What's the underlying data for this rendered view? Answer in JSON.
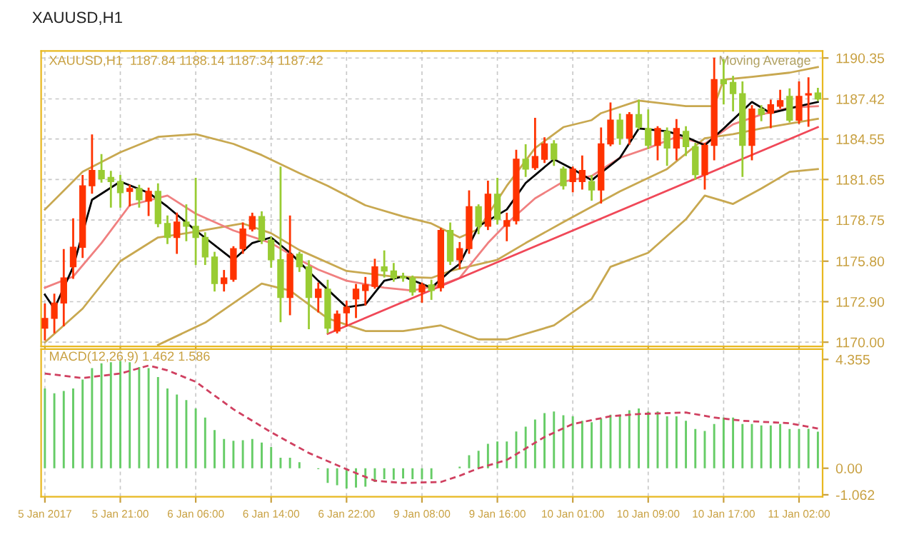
{
  "chart_data": [
    {
      "type": "candlestick",
      "title": "XAUUSD,H1",
      "subtitle": "XAUUSD,H1  1187.84 1188.14 1187.34 1187.42",
      "annotations": [
        "Moving Average"
      ],
      "categories": [
        null,
        null,
        null,
        null,
        null,
        null,
        null,
        null,
        null,
        null,
        null,
        null,
        null,
        null,
        null,
        null,
        null,
        null,
        null,
        null,
        null,
        null,
        null,
        null,
        null,
        null,
        null,
        null,
        null,
        null,
        null,
        null,
        null,
        null,
        null,
        null,
        null,
        null,
        null,
        null,
        null,
        null,
        null,
        null,
        null,
        null,
        null,
        null,
        null,
        null,
        null,
        null,
        null,
        null,
        null,
        null,
        null,
        null,
        null,
        null,
        null,
        null,
        null,
        null,
        null,
        null,
        null,
        null,
        null,
        null,
        null,
        null,
        null,
        null,
        null,
        null,
        null,
        null,
        null,
        null,
        null,
        null,
        null
      ],
      "ohlc": [
        [
          1171.0,
          1172.7,
          1170.2,
          1171.7
        ],
        [
          1171.7,
          1173.4,
          1170.7,
          1172.8
        ],
        [
          1172.8,
          1176.6,
          1171.2,
          1174.6
        ],
        [
          1175.4,
          1178.8,
          1174.6,
          1176.8
        ],
        [
          1176.8,
          1181.9,
          1176.1,
          1181.2
        ],
        [
          1181.2,
          1184.8,
          1180.7,
          1182.3
        ],
        [
          1182.3,
          1183.4,
          1181.5,
          1181.7
        ],
        [
          1181.8,
          1182.2,
          1179.7,
          1181.5
        ],
        [
          1181.5,
          1181.9,
          1179.7,
          1180.7
        ],
        [
          1180.8,
          1181.2,
          1179.8,
          1181.0
        ],
        [
          1181.0,
          1181.2,
          1179.7,
          1180.2
        ],
        [
          1180.1,
          1181.0,
          1179.1,
          1180.8
        ],
        [
          1180.8,
          1181.3,
          1178.3,
          1178.5
        ],
        [
          1178.5,
          1179.0,
          1177.1,
          1177.5
        ],
        [
          1177.5,
          1179.2,
          1176.4,
          1178.6
        ],
        [
          1178.6,
          1179.8,
          1177.3,
          1178.3
        ],
        [
          1178.3,
          1181.7,
          1175.6,
          1177.5
        ],
        [
          1177.5,
          1177.8,
          1175.6,
          1176.1
        ],
        [
          1176.1,
          1176.4,
          1173.7,
          1174.2
        ],
        [
          1174.2,
          1175.1,
          1173.7,
          1174.6
        ],
        [
          1174.5,
          1176.8,
          1174.4,
          1176.7
        ],
        [
          1176.7,
          1178.5,
          1176.4,
          1178.1
        ],
        [
          1178.1,
          1179.2,
          1178.0,
          1179.0
        ],
        [
          1179.0,
          1179.3,
          1177.1,
          1177.3
        ],
        [
          1177.3,
          1177.5,
          1175.4,
          1175.9
        ],
        [
          1175.9,
          1182.5,
          1171.5,
          1173.2
        ],
        [
          1173.2,
          1179.0,
          1172.0,
          1176.3
        ],
        [
          1176.3,
          1176.4,
          1175.1,
          1175.4
        ],
        [
          1175.4,
          1175.8,
          1171.0,
          1173.2
        ],
        [
          1173.2,
          1174.2,
          1172.2,
          1173.8
        ],
        [
          1173.8,
          1174.4,
          1170.7,
          1171.0
        ],
        [
          1170.8,
          1172.2,
          1170.7,
          1172.0
        ],
        [
          1172.1,
          1172.9,
          1171.2,
          1172.5
        ],
        [
          1173.1,
          1174.1,
          1171.8,
          1173.8
        ],
        [
          1173.7,
          1174.6,
          1172.7,
          1174.1
        ],
        [
          1174.0,
          1175.9,
          1173.9,
          1175.4
        ],
        [
          1175.4,
          1176.5,
          1174.7,
          1175.1
        ],
        [
          1175.1,
          1175.6,
          1174.4,
          1174.6
        ],
        [
          1174.7,
          1174.9,
          1174.4,
          1174.6
        ],
        [
          1174.6,
          1174.7,
          1173.4,
          1173.6
        ],
        [
          1173.6,
          1174.2,
          1172.9,
          1174.1
        ],
        [
          1174.1,
          1174.4,
          1173.1,
          1173.7
        ],
        [
          1173.9,
          1178.1,
          1173.7,
          1178.0
        ],
        [
          1178.0,
          1178.5,
          1175.6,
          1175.8
        ],
        [
          1175.9,
          1177.1,
          1175.3,
          1176.7
        ],
        [
          1176.7,
          1180.8,
          1176.4,
          1179.7
        ],
        [
          1179.7,
          1179.8,
          1177.8,
          1178.3
        ],
        [
          1178.3,
          1181.5,
          1178.1,
          1180.6
        ],
        [
          1180.6,
          1181.7,
          1178.5,
          1178.8
        ],
        [
          1178.3,
          1179.2,
          1177.3,
          1178.7
        ],
        [
          1178.7,
          1183.7,
          1178.5,
          1183.1
        ],
        [
          1183.1,
          1184.1,
          1181.9,
          1182.4
        ],
        [
          1182.5,
          1186.0,
          1182.4,
          1183.3
        ],
        [
          1183.1,
          1184.6,
          1182.9,
          1184.2
        ],
        [
          1184.2,
          1184.4,
          1182.7,
          1183.1
        ],
        [
          1182.4,
          1182.5,
          1181.0,
          1181.2
        ],
        [
          1181.5,
          1182.5,
          1180.8,
          1182.4
        ],
        [
          1181.5,
          1183.3,
          1181.0,
          1182.3
        ],
        [
          1181.5,
          1181.9,
          1180.2,
          1180.9
        ],
        [
          1180.9,
          1185.3,
          1180.0,
          1184.2
        ],
        [
          1184.2,
          1187.1,
          1184.1,
          1185.9
        ],
        [
          1185.9,
          1186.3,
          1184.2,
          1184.6
        ],
        [
          1184.6,
          1186.4,
          1184.2,
          1186.3
        ],
        [
          1186.3,
          1187.3,
          1185.3,
          1185.4
        ],
        [
          1185.3,
          1186.6,
          1183.9,
          1184.1
        ],
        [
          1184.1,
          1185.4,
          1183.1,
          1185.3
        ],
        [
          1185.1,
          1185.3,
          1182.7,
          1183.9
        ],
        [
          1183.9,
          1185.9,
          1183.1,
          1185.3
        ],
        [
          1185.1,
          1185.4,
          1183.4,
          1184.0
        ],
        [
          1184.0,
          1184.2,
          1181.7,
          1182.0
        ],
        [
          1182.0,
          1184.2,
          1181.0,
          1184.1
        ],
        [
          1184.1,
          1190.3,
          1183.1,
          1188.8
        ],
        [
          1188.8,
          1190.2,
          1187.1,
          1188.5
        ],
        [
          1188.6,
          1189.0,
          1186.6,
          1187.8
        ],
        [
          1187.8,
          1188.6,
          1181.9,
          1184.1
        ],
        [
          1184.1,
          1186.9,
          1183.1,
          1186.7
        ],
        [
          1186.7,
          1186.9,
          1185.9,
          1186.3
        ],
        [
          1186.4,
          1187.3,
          1185.4,
          1187.0
        ],
        [
          1186.9,
          1188.0,
          1186.8,
          1187.3
        ],
        [
          1187.6,
          1188.1,
          1185.8,
          1185.9
        ],
        [
          1185.9,
          1188.6,
          1185.7,
          1187.6
        ],
        [
          1187.7,
          1188.9,
          1185.5,
          1187.8
        ],
        [
          1187.84,
          1188.14,
          1187.34,
          1187.42
        ]
      ],
      "colors": [
        "#ff3300",
        "#ff3300",
        "#ff3300",
        "#ff3300",
        "#ff3300",
        "#ff3300",
        "#99cc33",
        "#99cc33",
        "#99cc33",
        "#ff3300",
        "#99cc33",
        "#ff3300",
        "#99cc33",
        "#99cc33",
        "#ff3300",
        "#99cc33",
        "#99cc33",
        "#99cc33",
        "#99cc33",
        "#ff3300",
        "#ff3300",
        "#ff3300",
        "#ff3300",
        "#99cc33",
        "#99cc33",
        "#99cc33",
        "#ff3300",
        "#99cc33",
        "#99cc33",
        "#ff3300",
        "#99cc33",
        "#ff3300",
        "#ff3300",
        "#ff3300",
        "#ff3300",
        "#ff3300",
        "#99cc33",
        "#99cc33",
        "#99cc33",
        "#99cc33",
        "#ff3300",
        "#99cc33",
        "#ff3300",
        "#99cc33",
        "#ff3300",
        "#ff3300",
        "#99cc33",
        "#ff3300",
        "#99cc33",
        "#ff3300",
        "#ff3300",
        "#99cc33",
        "#ff3300",
        "#ff3300",
        "#99cc33",
        "#99cc33",
        "#ff3300",
        "#ff3300",
        "#99cc33",
        "#ff3300",
        "#ff3300",
        "#99cc33",
        "#ff3300",
        "#99cc33",
        "#99cc33",
        "#ff3300",
        "#99cc33",
        "#ff3300",
        "#99cc33",
        "#99cc33",
        "#ff3300",
        "#ff3300",
        "#99cc33",
        "#99cc33",
        "#99cc33",
        "#ff3300",
        "#99cc33",
        "#ff3300",
        "#ff3300",
        "#99cc33",
        "#ff3300",
        "#ff3300",
        "#99cc33"
      ],
      "series": [
        {
          "type": "line",
          "color": "#c8a850",
          "values": [
            1179.5,
            null,
            null,
            null,
            1182.2,
            null,
            null,
            null,
            1183.6,
            null,
            null,
            null,
            1184.7,
            null,
            null,
            null,
            1184.9,
            null,
            null,
            null,
            1184.2,
            null,
            null,
            1183.4,
            null,
            null,
            null,
            1182.1,
            null,
            null,
            1181.2,
            null,
            null,
            null,
            1179.8,
            null,
            null,
            null,
            1179.0,
            null,
            null,
            1178.5,
            null,
            null,
            1177.5,
            null,
            1178.1,
            null,
            null,
            1181.2,
            null,
            null,
            1183.9,
            null,
            null,
            1185.4,
            null,
            null,
            1185.9,
            1186.4,
            null,
            null,
            null,
            1187.3,
            null,
            null,
            null,
            null,
            1186.9,
            null,
            null,
            1186.9,
            1188.8,
            null,
            null,
            1189.0,
            null,
            null,
            null,
            1189.3,
            null,
            null,
            1189.7
          ]
        },
        {
          "type": "line",
          "color": "#c8a850",
          "values": [
            1170.0,
            null,
            null,
            null,
            1172.4,
            null,
            null,
            null,
            1175.8,
            null,
            null,
            null,
            1177.5,
            null,
            null,
            1177.8,
            null,
            null,
            null,
            null,
            null,
            1178.5,
            null,
            null,
            1177.8,
            null,
            null,
            1176.6,
            null,
            null,
            null,
            null,
            1175.1,
            null,
            null,
            null,
            null,
            1174.7,
            null,
            null,
            null,
            1174.6,
            null,
            1175.1,
            null,
            null,
            null,
            null,
            1175.9,
            null,
            null,
            1177.1,
            null,
            null,
            null,
            1178.6,
            null,
            null,
            1179.7,
            null,
            null,
            1180.8,
            null,
            null,
            null,
            null,
            1182.4,
            null,
            null,
            null,
            1184.6,
            null,
            null,
            1184.9,
            null,
            null,
            1185.3,
            null,
            null,
            null,
            null,
            null,
            1186.0
          ]
        },
        {
          "type": "line",
          "color": "#c8a850",
          "values": [
            null,
            null,
            null,
            null,
            null,
            null,
            null,
            null,
            null,
            null,
            null,
            null,
            1169.8,
            null,
            null,
            null,
            null,
            1171.4,
            null,
            null,
            null,
            null,
            null,
            1174.2,
            null,
            null,
            1173.7,
            null,
            null,
            null,
            1171.7,
            null,
            null,
            null,
            1170.8,
            null,
            null,
            null,
            1170.8,
            null,
            null,
            null,
            1171.2,
            null,
            null,
            null,
            1170.2,
            null,
            null,
            1170.2,
            null,
            null,
            null,
            null,
            1171.2,
            null,
            null,
            null,
            1173.1,
            null,
            1175.4,
            null,
            null,
            null,
            1176.4,
            null,
            null,
            null,
            1178.8,
            null,
            1180.5,
            null,
            null,
            1179.9,
            null,
            null,
            1181.0,
            null,
            null,
            1182.2,
            null,
            null,
            1182.4
          ]
        },
        {
          "type": "line",
          "color": "#f08080",
          "values": [
            1173.9,
            null,
            null,
            1174.7,
            null,
            null,
            1177.1,
            null,
            null,
            1179.8,
            null,
            null,
            null,
            1180.5,
            null,
            null,
            1179.2,
            null,
            null,
            null,
            1178.0,
            null,
            null,
            null,
            1177.1,
            null,
            null,
            1175.9,
            null,
            1175.2,
            null,
            null,
            1174.4,
            null,
            null,
            null,
            1173.9,
            null,
            null,
            1173.7,
            null,
            null,
            1174.1,
            null,
            1174.6,
            null,
            null,
            1177.1,
            null,
            1178.5,
            null,
            null,
            1180.3,
            null,
            null,
            1181.5,
            null,
            null,
            1181.9,
            null,
            null,
            1183.2,
            null,
            null,
            1183.9,
            null,
            null,
            1184.7,
            null,
            null,
            1184.2,
            null,
            null,
            1185.6,
            null,
            null,
            1186.3,
            null,
            null,
            1186.8,
            null,
            null,
            1186.9
          ]
        },
        {
          "type": "line",
          "color": "#000000",
          "values": [
            1173.4,
            1172.4,
            null,
            1175.4,
            null,
            1180.2,
            null,
            null,
            1181.5,
            null,
            null,
            1180.7,
            null,
            1179.7,
            null,
            null,
            1178.0,
            null,
            null,
            null,
            1175.9,
            null,
            1177.1,
            null,
            1177.5,
            null,
            1176.4,
            null,
            null,
            1174.4,
            null,
            null,
            1172.5,
            null,
            1172.7,
            null,
            1174.4,
            null,
            1174.7,
            null,
            null,
            1173.9,
            null,
            1175.1,
            1175.6,
            null,
            1178.3,
            null,
            null,
            1179.5,
            null,
            1181.4,
            null,
            null,
            1183.1,
            null,
            1182.4,
            null,
            1181.6,
            null,
            null,
            1183.2,
            null,
            1185.3,
            null,
            null,
            1185.1,
            null,
            1184.7,
            null,
            1184.1,
            null,
            1185.3,
            null,
            null,
            1187.2,
            null,
            1186.4,
            null,
            null,
            1186.9,
            null,
            1187.2
          ]
        },
        {
          "type": "line",
          "color": "#f04858",
          "values": [
            null,
            null,
            null,
            null,
            null,
            null,
            null,
            null,
            null,
            null,
            null,
            null,
            null,
            null,
            null,
            null,
            null,
            null,
            null,
            null,
            null,
            null,
            null,
            null,
            null,
            null,
            null,
            null,
            null,
            null,
            1170.6,
            null,
            null,
            null,
            null,
            null,
            null,
            null,
            null,
            null,
            null,
            null,
            null,
            null,
            null,
            null,
            null,
            null,
            null,
            null,
            null,
            null,
            null,
            null,
            null,
            null,
            null,
            null,
            null,
            null,
            null,
            null,
            null,
            null,
            null,
            null,
            null,
            null,
            null,
            null,
            null,
            null,
            null,
            null,
            null,
            null,
            null,
            null,
            null,
            null,
            null,
            null,
            1185.4
          ]
        }
      ],
      "ylim": [
        1169.7,
        1190.85
      ],
      "yticks": [
        {
          "value": 1170.0,
          "label": "1170.00"
        },
        {
          "value": 1172.9,
          "label": "1172.90"
        },
        {
          "value": 1175.8,
          "label": "1175.80"
        },
        {
          "value": 1178.75,
          "label": "1178.75"
        },
        {
          "value": 1181.65,
          "label": "1181.65"
        },
        {
          "value": 1184.55,
          "label": "1184.55"
        },
        {
          "value": 1187.42,
          "label": "1187.42"
        },
        {
          "value": 1190.35,
          "label": "1190.35"
        }
      ],
      "tick_labels": "y",
      "grid": true,
      "legend": false
    },
    {
      "type": "bar",
      "subtitle": "MACD(12,26,9) 1.462 1.586",
      "categories": [
        "5 Jan 2017",
        null,
        null,
        null,
        null,
        null,
        null,
        null,
        "5 Jan 21:00",
        null,
        null,
        null,
        null,
        null,
        null,
        null,
        "6 Jan 06:00",
        null,
        null,
        null,
        null,
        null,
        null,
        null,
        "6 Jan 14:00",
        null,
        null,
        null,
        null,
        null,
        null,
        null,
        "6 Jan 22:00",
        null,
        null,
        null,
        null,
        null,
        null,
        null,
        "9 Jan 08:00",
        null,
        null,
        null,
        null,
        null,
        null,
        null,
        "9 Jan 16:00",
        null,
        null,
        null,
        null,
        null,
        null,
        null,
        "10 Jan 01:00",
        null,
        null,
        null,
        null,
        null,
        null,
        null,
        "10 Jan 09:00",
        null,
        null,
        null,
        null,
        null,
        null,
        null,
        "10 Jan 17:00",
        null,
        null,
        null,
        null,
        null,
        null,
        null,
        "11 Jan 02:00",
        null,
        null
      ],
      "series": [
        {
          "type": "bar",
          "color": "#66cc66",
          "values": [
            3.19,
            3.0,
            3.09,
            3.19,
            3.55,
            4.01,
            4.2,
            4.24,
            4.29,
            4.24,
            4.05,
            4.01,
            3.65,
            3.19,
            2.95,
            2.73,
            2.39,
            2.03,
            1.53,
            1.17,
            1.1,
            1.12,
            1.17,
            1.03,
            0.85,
            0.42,
            0.42,
            0.24,
            null,
            -0.04,
            -0.59,
            -0.68,
            -0.81,
            -0.77,
            -0.74,
            -0.55,
            -0.44,
            -0.46,
            -0.41,
            -0.44,
            -0.44,
            -0.44,
            null,
            null,
            0.06,
            0.52,
            0.7,
            0.98,
            1.07,
            1.07,
            1.47,
            1.66,
            1.95,
            2.21,
            2.27,
            2.12,
            2.08,
            1.9,
            1.84,
            1.99,
            2.14,
            2.14,
            2.32,
            2.39,
            2.27,
            2.27,
            2.08,
            2.08,
            1.9,
            1.57,
            1.49,
            1.77,
            2.03,
            2.03,
            1.77,
            1.77,
            1.71,
            1.71,
            1.77,
            1.57,
            1.57,
            1.58,
            1.46
          ]
        },
        {
          "type": "line",
          "color": "#d04060",
          "line_style": "dashed",
          "values": [
            3.79,
            null,
            null,
            null,
            3.61,
            null,
            null,
            null,
            3.79,
            null,
            null,
            4.11,
            null,
            3.92,
            null,
            null,
            3.46,
            null,
            null,
            null,
            2.36,
            null,
            null,
            null,
            1.44,
            null,
            null,
            null,
            0.61,
            null,
            null,
            null,
            -0.04,
            null,
            null,
            -0.5,
            null,
            null,
            -0.59,
            null,
            null,
            null,
            -0.55,
            null,
            -0.3,
            null,
            0.0,
            null,
            null,
            0.33,
            null,
            null,
            null,
            1.25,
            null,
            null,
            1.77,
            null,
            null,
            null,
            2.08,
            null,
            null,
            2.17,
            null,
            null,
            null,
            null,
            2.23,
            null,
            null,
            2.03,
            null,
            null,
            1.9,
            null,
            null,
            null,
            null,
            1.8,
            null,
            null,
            1.59
          ]
        }
      ],
      "ylim": [
        -1.14,
        4.77
      ],
      "yticks": [
        4.355,
        {
          "value": 0,
          "label": "0.00"
        },
        -1.062
      ],
      "grid": "x",
      "legend": false
    }
  ]
}
